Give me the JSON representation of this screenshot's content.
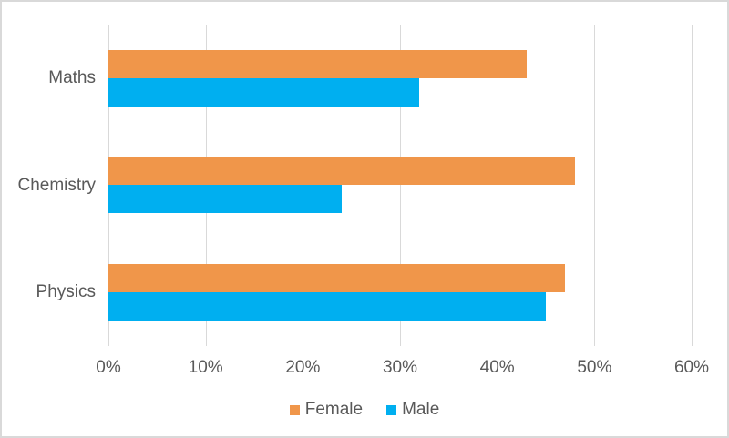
{
  "chart_data": {
    "type": "bar",
    "orientation": "horizontal",
    "title": "",
    "xlabel": "",
    "ylabel": "",
    "categories": [
      "Maths",
      "Chemistry",
      "Physics"
    ],
    "series": [
      {
        "name": "Female",
        "color": "#F0964A",
        "values": [
          43,
          48,
          47
        ]
      },
      {
        "name": "Male",
        "color": "#00AFF0",
        "values": [
          32,
          24,
          45
        ]
      }
    ],
    "value_unit": "%",
    "xlim": [
      0,
      60
    ],
    "x_ticks": [
      0,
      10,
      20,
      30,
      40,
      50,
      60
    ],
    "x_tick_labels": [
      "0%",
      "10%",
      "20%",
      "30%",
      "40%",
      "50%",
      "60%"
    ],
    "grid": true,
    "legend_position": "bottom"
  },
  "legend": {
    "items": [
      {
        "label": "Female",
        "color": "#F0964A"
      },
      {
        "label": "Male",
        "color": "#00AFF0"
      }
    ]
  },
  "colors": {
    "female": "#F0964A",
    "male": "#00AFF0",
    "text": "#595959",
    "gridline": "#D9D9D9",
    "border": "#D9D9D9",
    "background": "#FFFFFF"
  }
}
